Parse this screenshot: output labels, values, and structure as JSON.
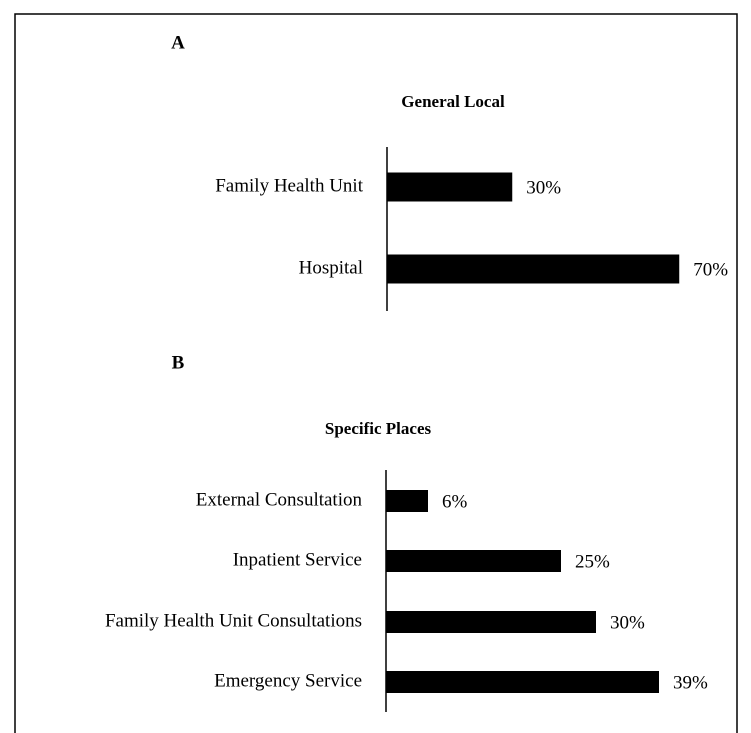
{
  "chart_data": [
    {
      "type": "hbar",
      "panel": "A",
      "title": "General Local",
      "categories": [
        "Family Health Unit",
        "Hospital"
      ],
      "values": [
        30,
        70
      ],
      "value_labels": [
        "30%",
        "70%"
      ],
      "color": "#000000",
      "xlim": [
        0,
        80
      ]
    },
    {
      "type": "hbar",
      "panel": "B",
      "title": "Specific Places",
      "categories": [
        "External Consultation",
        "Inpatient Service",
        "Family Health Unit Consultations",
        "Emergency Service"
      ],
      "values": [
        6,
        25,
        30,
        39
      ],
      "value_labels": [
        "6%",
        "25%",
        "30%",
        "39%"
      ],
      "color": "#000000",
      "xlim": [
        0,
        45
      ]
    }
  ]
}
